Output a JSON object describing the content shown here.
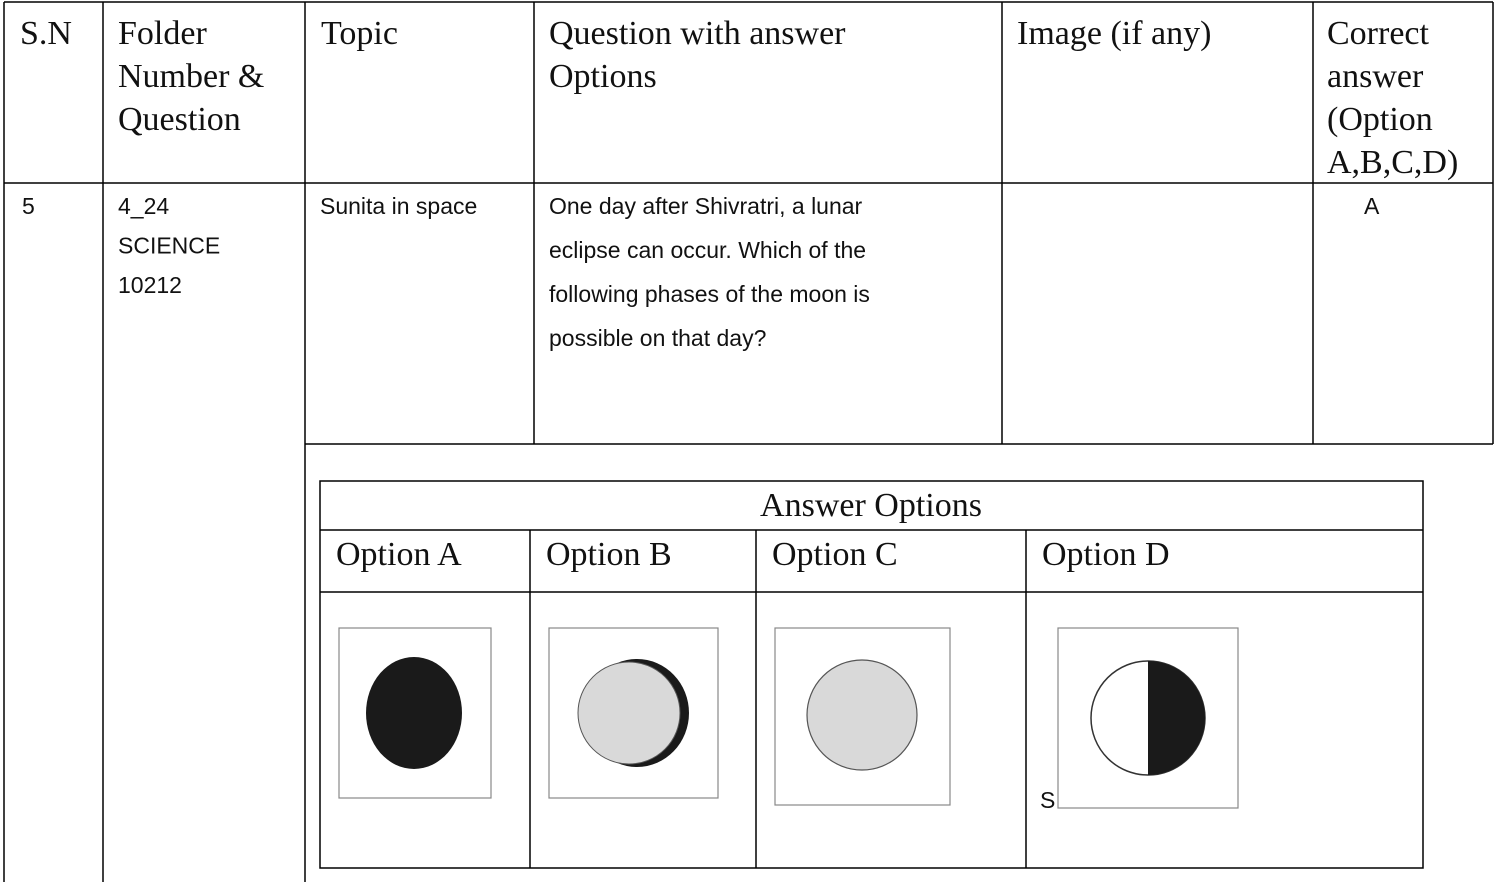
{
  "table": {
    "header": [
      [
        "S.N"
      ],
      [
        "Folder",
        "Number &",
        "Question"
      ],
      [
        "Topic"
      ],
      [
        "Question with answer",
        "Options"
      ],
      [
        "Image (if any)"
      ],
      [
        "Correct",
        "answer",
        "(Option",
        "A,B,C,D)"
      ]
    ],
    "row": {
      "sn": "5",
      "folder": [
        "4_24",
        "SCIENCE",
        "10212"
      ],
      "topic": "Sunita in space",
      "question": [
        "One day after Shivratri, a lunar",
        "eclipse can occur. Which of the",
        "following phases of the moon is",
        "possible on that day?"
      ],
      "answer": "A"
    },
    "answer_options": {
      "title": "Answer  Options",
      "options": [
        "Option A",
        "Option B",
        "Option C",
        "Option D"
      ],
      "note": "S"
    }
  }
}
